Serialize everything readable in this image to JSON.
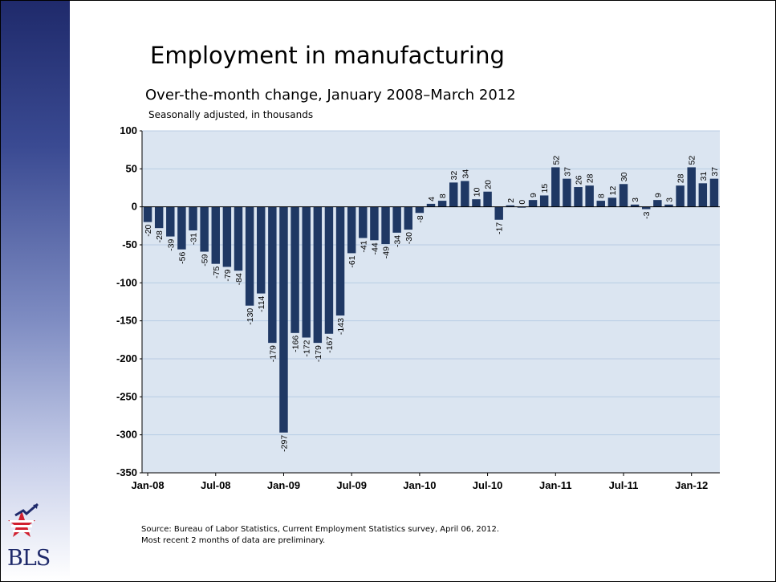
{
  "slide": {
    "title": "Employment in manufacturing",
    "subtitle": "Over-the-month change, January 2008–March 2012",
    "units_note": "Seasonally adjusted, in thousands",
    "source_line1": "Source: Bureau of Labor Statistics, Current Employment Statistics survey, April 06, 2012.",
    "source_line2": "Most recent 2 months of data are preliminary.",
    "logo_text": "BLS"
  },
  "colors": {
    "bar": "#1f3864",
    "plot_background": "#dbe5f1",
    "gridline": "#b8cce4",
    "logo_blue": "#1f2a6b",
    "logo_red": "#d1202f"
  },
  "chart_data": {
    "type": "bar",
    "title": "Employment in manufacturing",
    "ylim": [
      -350,
      100
    ],
    "y_ticks": [
      "100",
      "50",
      "0",
      "-50",
      "-100",
      "-150",
      "-200",
      "-250",
      "-300",
      "-350"
    ],
    "x_tick_labels": [
      "Jan-08",
      "Jul-08",
      "Jan-09",
      "Jul-09",
      "Jan-10",
      "Jul-10",
      "Jan-11",
      "Jul-11",
      "Jan-12"
    ],
    "grid": true,
    "categories": [
      "Jan-08",
      "Feb-08",
      "Mar-08",
      "Apr-08",
      "May-08",
      "Jun-08",
      "Jul-08",
      "Aug-08",
      "Sep-08",
      "Oct-08",
      "Nov-08",
      "Dec-08",
      "Jan-09",
      "Feb-09",
      "Mar-09",
      "Apr-09",
      "May-09",
      "Jun-09",
      "Jul-09",
      "Aug-09",
      "Sep-09",
      "Oct-09",
      "Nov-09",
      "Dec-09",
      "Jan-10",
      "Feb-10",
      "Mar-10",
      "Apr-10",
      "May-10",
      "Jun-10",
      "Jul-10",
      "Aug-10",
      "Sep-10",
      "Oct-10",
      "Nov-10",
      "Dec-10",
      "Jan-11",
      "Feb-11",
      "Mar-11",
      "Apr-11",
      "May-11",
      "Jun-11",
      "Jul-11",
      "Aug-11",
      "Sep-11",
      "Oct-11",
      "Nov-11",
      "Dec-11",
      "Jan-12",
      "Feb-12",
      "Mar-12"
    ],
    "values": [
      -20,
      -28,
      -39,
      -56,
      -31,
      -59,
      -75,
      -79,
      -84,
      -130,
      -114,
      -179,
      -297,
      -166,
      -172,
      -179,
      -167,
      -143,
      -61,
      -41,
      -44,
      -49,
      -34,
      -30,
      -8,
      4,
      8,
      32,
      34,
      10,
      20,
      -17,
      2,
      0,
      9,
      15,
      52,
      37,
      26,
      28,
      8,
      12,
      30,
      3,
      -3,
      9,
      3,
      28,
      52,
      31,
      37
    ]
  }
}
